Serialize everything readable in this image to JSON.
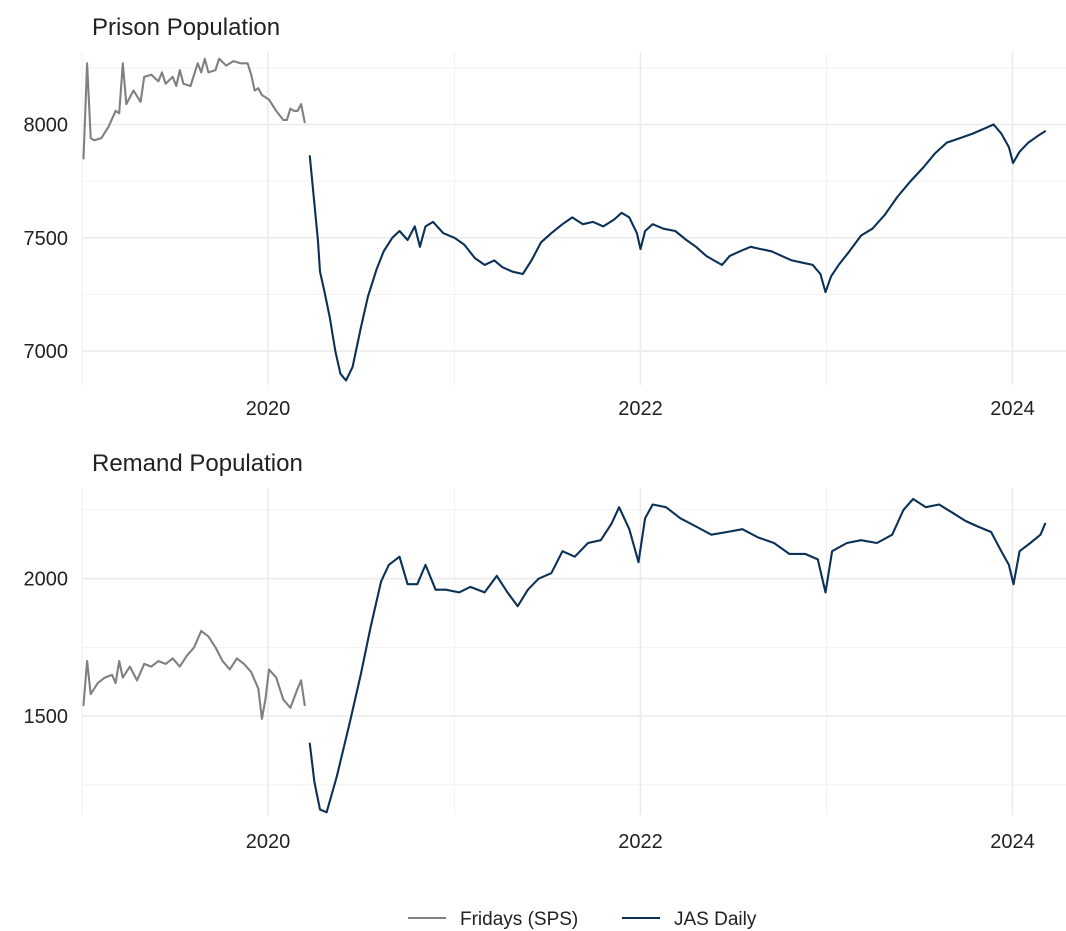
{
  "chart_data": [
    {
      "type": "line",
      "title": "Prison Population",
      "xlabel": "",
      "ylabel": "",
      "x_ticks": [
        "2020",
        "2022",
        "2024"
      ],
      "y_ticks": [
        "7000",
        "7500",
        "8000"
      ],
      "xlim": [
        "2019-01-01",
        "2024-04-15"
      ],
      "ylim": [
        6850,
        8320
      ],
      "grid": true,
      "series": [
        {
          "name": "Fridays (SPS)",
          "color": "#808080",
          "points": [
            [
              "2019-01-04",
              7850
            ],
            [
              "2019-01-11",
              8270
            ],
            [
              "2019-01-18",
              7940
            ],
            [
              "2019-01-25",
              7930
            ],
            [
              "2019-02-08",
              7940
            ],
            [
              "2019-02-22",
              7990
            ],
            [
              "2019-03-08",
              8060
            ],
            [
              "2019-03-15",
              8050
            ],
            [
              "2019-03-22",
              8270
            ],
            [
              "2019-03-29",
              8090
            ],
            [
              "2019-04-12",
              8150
            ],
            [
              "2019-04-26",
              8100
            ],
            [
              "2019-05-03",
              8210
            ],
            [
              "2019-05-17",
              8220
            ],
            [
              "2019-05-31",
              8190
            ],
            [
              "2019-06-07",
              8230
            ],
            [
              "2019-06-14",
              8180
            ],
            [
              "2019-06-28",
              8210
            ],
            [
              "2019-07-05",
              8170
            ],
            [
              "2019-07-12",
              8240
            ],
            [
              "2019-07-19",
              8180
            ],
            [
              "2019-08-02",
              8170
            ],
            [
              "2019-08-16",
              8270
            ],
            [
              "2019-08-23",
              8230
            ],
            [
              "2019-08-30",
              8290
            ],
            [
              "2019-09-06",
              8230
            ],
            [
              "2019-09-20",
              8240
            ],
            [
              "2019-09-27",
              8290
            ],
            [
              "2019-10-11",
              8260
            ],
            [
              "2019-10-25",
              8280
            ],
            [
              "2019-11-08",
              8270
            ],
            [
              "2019-11-22",
              8270
            ],
            [
              "2019-11-29",
              8220
            ],
            [
              "2019-12-06",
              8150
            ],
            [
              "2019-12-13",
              8160
            ],
            [
              "2019-12-20",
              8130
            ],
            [
              "2020-01-03",
              8110
            ],
            [
              "2020-01-17",
              8060
            ],
            [
              "2020-01-31",
              8020
            ],
            [
              "2020-02-07",
              8020
            ],
            [
              "2020-02-14",
              8070
            ],
            [
              "2020-02-21",
              8060
            ],
            [
              "2020-02-28",
              8060
            ],
            [
              "2020-03-06",
              8090
            ],
            [
              "2020-03-13",
              8010
            ]
          ]
        },
        {
          "name": "JAS Daily",
          "color": "#0b3157",
          "points": [
            [
              "2020-03-23",
              7860
            ],
            [
              "2020-03-30",
              7700
            ],
            [
              "2020-04-08",
              7490
            ],
            [
              "2020-04-12",
              7350
            ],
            [
              "2020-04-20",
              7270
            ],
            [
              "2020-05-01",
              7150
            ],
            [
              "2020-05-12",
              7000
            ],
            [
              "2020-05-22",
              6900
            ],
            [
              "2020-06-02",
              6870
            ],
            [
              "2020-06-15",
              6930
            ],
            [
              "2020-07-01",
              7100
            ],
            [
              "2020-07-15",
              7240
            ],
            [
              "2020-08-01",
              7360
            ],
            [
              "2020-08-15",
              7440
            ],
            [
              "2020-09-01",
              7500
            ],
            [
              "2020-09-15",
              7530
            ],
            [
              "2020-10-01",
              7490
            ],
            [
              "2020-10-15",
              7550
            ],
            [
              "2020-10-25",
              7460
            ],
            [
              "2020-11-05",
              7550
            ],
            [
              "2020-11-20",
              7570
            ],
            [
              "2020-12-10",
              7520
            ],
            [
              "2021-01-01",
              7500
            ],
            [
              "2021-01-20",
              7470
            ],
            [
              "2021-02-10",
              7410
            ],
            [
              "2021-03-01",
              7380
            ],
            [
              "2021-03-20",
              7400
            ],
            [
              "2021-04-05",
              7370
            ],
            [
              "2021-04-25",
              7350
            ],
            [
              "2021-05-15",
              7340
            ],
            [
              "2021-06-01",
              7400
            ],
            [
              "2021-06-20",
              7480
            ],
            [
              "2021-07-10",
              7520
            ],
            [
              "2021-08-01",
              7560
            ],
            [
              "2021-08-20",
              7590
            ],
            [
              "2021-09-10",
              7560
            ],
            [
              "2021-09-30",
              7570
            ],
            [
              "2021-10-20",
              7550
            ],
            [
              "2021-11-10",
              7580
            ],
            [
              "2021-11-25",
              7610
            ],
            [
              "2021-12-10",
              7590
            ],
            [
              "2021-12-25",
              7520
            ],
            [
              "2022-01-01",
              7450
            ],
            [
              "2022-01-10",
              7530
            ],
            [
              "2022-01-25",
              7560
            ],
            [
              "2022-02-15",
              7540
            ],
            [
              "2022-03-10",
              7530
            ],
            [
              "2022-04-01",
              7490
            ],
            [
              "2022-04-20",
              7460
            ],
            [
              "2022-05-10",
              7420
            ],
            [
              "2022-05-25",
              7400
            ],
            [
              "2022-06-10",
              7380
            ],
            [
              "2022-06-25",
              7420
            ],
            [
              "2022-07-15",
              7440
            ],
            [
              "2022-08-05",
              7460
            ],
            [
              "2022-08-25",
              7450
            ],
            [
              "2022-09-15",
              7440
            ],
            [
              "2022-10-05",
              7420
            ],
            [
              "2022-10-25",
              7400
            ],
            [
              "2022-11-15",
              7390
            ],
            [
              "2022-12-05",
              7380
            ],
            [
              "2022-12-20",
              7340
            ],
            [
              "2022-12-30",
              7260
            ],
            [
              "2023-01-10",
              7330
            ],
            [
              "2023-01-25",
              7380
            ],
            [
              "2023-02-15",
              7440
            ],
            [
              "2023-03-10",
              7510
            ],
            [
              "2023-04-01",
              7540
            ],
            [
              "2023-04-25",
              7600
            ],
            [
              "2023-05-20",
              7680
            ],
            [
              "2023-06-15",
              7750
            ],
            [
              "2023-07-10",
              7810
            ],
            [
              "2023-08-01",
              7870
            ],
            [
              "2023-08-25",
              7920
            ],
            [
              "2023-09-20",
              7940
            ],
            [
              "2023-10-15",
              7960
            ],
            [
              "2023-11-05",
              7980
            ],
            [
              "2023-11-25",
              8000
            ],
            [
              "2023-12-10",
              7960
            ],
            [
              "2023-12-25",
              7900
            ],
            [
              "2024-01-02",
              7830
            ],
            [
              "2024-01-15",
              7880
            ],
            [
              "2024-02-01",
              7920
            ],
            [
              "2024-02-20",
              7950
            ],
            [
              "2024-03-05",
              7970
            ]
          ]
        }
      ]
    },
    {
      "type": "line",
      "title": "Remand Population",
      "xlabel": "",
      "ylabel": "",
      "x_ticks": [
        "2020",
        "2022",
        "2024"
      ],
      "y_ticks": [
        "1500",
        "2000"
      ],
      "xlim": [
        "2019-01-01",
        "2024-04-15"
      ],
      "ylim": [
        1140,
        2330
      ],
      "grid": true,
      "series": [
        {
          "name": "Fridays (SPS)",
          "color": "#808080",
          "points": [
            [
              "2019-01-04",
              1540
            ],
            [
              "2019-01-11",
              1700
            ],
            [
              "2019-01-18",
              1580
            ],
            [
              "2019-02-01",
              1620
            ],
            [
              "2019-02-15",
              1640
            ],
            [
              "2019-03-01",
              1650
            ],
            [
              "2019-03-08",
              1620
            ],
            [
              "2019-03-15",
              1700
            ],
            [
              "2019-03-22",
              1640
            ],
            [
              "2019-04-05",
              1680
            ],
            [
              "2019-04-19",
              1630
            ],
            [
              "2019-05-03",
              1690
            ],
            [
              "2019-05-17",
              1680
            ],
            [
              "2019-05-31",
              1700
            ],
            [
              "2019-06-14",
              1690
            ],
            [
              "2019-06-28",
              1710
            ],
            [
              "2019-07-12",
              1680
            ],
            [
              "2019-07-26",
              1720
            ],
            [
              "2019-08-09",
              1750
            ],
            [
              "2019-08-23",
              1810
            ],
            [
              "2019-09-06",
              1790
            ],
            [
              "2019-09-20",
              1750
            ],
            [
              "2019-10-04",
              1700
            ],
            [
              "2019-10-18",
              1670
            ],
            [
              "2019-11-01",
              1710
            ],
            [
              "2019-11-15",
              1690
            ],
            [
              "2019-11-29",
              1660
            ],
            [
              "2019-12-13",
              1600
            ],
            [
              "2019-12-20",
              1490
            ],
            [
              "2019-12-27",
              1560
            ],
            [
              "2020-01-03",
              1670
            ],
            [
              "2020-01-17",
              1640
            ],
            [
              "2020-01-31",
              1560
            ],
            [
              "2020-02-14",
              1530
            ],
            [
              "2020-02-28",
              1600
            ],
            [
              "2020-03-06",
              1630
            ],
            [
              "2020-03-13",
              1540
            ]
          ]
        },
        {
          "name": "JAS Daily",
          "color": "#0b3157",
          "points": [
            [
              "2020-03-23",
              1400
            ],
            [
              "2020-04-01",
              1260
            ],
            [
              "2020-04-12",
              1160
            ],
            [
              "2020-04-25",
              1150
            ],
            [
              "2020-05-15",
              1280
            ],
            [
              "2020-06-10",
              1480
            ],
            [
              "2020-07-01",
              1650
            ],
            [
              "2020-07-20",
              1820
            ],
            [
              "2020-08-10",
              1990
            ],
            [
              "2020-08-25",
              2050
            ],
            [
              "2020-09-15",
              2080
            ],
            [
              "2020-10-01",
              1980
            ],
            [
              "2020-10-20",
              1980
            ],
            [
              "2020-11-05",
              2050
            ],
            [
              "2020-11-25",
              1960
            ],
            [
              "2020-12-15",
              1960
            ],
            [
              "2021-01-10",
              1950
            ],
            [
              "2021-02-01",
              1970
            ],
            [
              "2021-03-01",
              1950
            ],
            [
              "2021-03-25",
              2010
            ],
            [
              "2021-04-15",
              1950
            ],
            [
              "2021-05-05",
              1900
            ],
            [
              "2021-05-25",
              1960
            ],
            [
              "2021-06-15",
              2000
            ],
            [
              "2021-07-10",
              2020
            ],
            [
              "2021-08-01",
              2100
            ],
            [
              "2021-08-25",
              2080
            ],
            [
              "2021-09-20",
              2130
            ],
            [
              "2021-10-15",
              2140
            ],
            [
              "2021-11-05",
              2200
            ],
            [
              "2021-11-20",
              2260
            ],
            [
              "2021-12-10",
              2180
            ],
            [
              "2021-12-28",
              2060
            ],
            [
              "2022-01-10",
              2220
            ],
            [
              "2022-01-25",
              2270
            ],
            [
              "2022-02-20",
              2260
            ],
            [
              "2022-03-20",
              2220
            ],
            [
              "2022-04-20",
              2190
            ],
            [
              "2022-05-20",
              2160
            ],
            [
              "2022-06-20",
              2170
            ],
            [
              "2022-07-20",
              2180
            ],
            [
              "2022-08-20",
              2150
            ],
            [
              "2022-09-20",
              2130
            ],
            [
              "2022-10-20",
              2090
            ],
            [
              "2022-11-20",
              2090
            ],
            [
              "2022-12-15",
              2070
            ],
            [
              "2022-12-30",
              1950
            ],
            [
              "2023-01-12",
              2100
            ],
            [
              "2023-02-10",
              2130
            ],
            [
              "2023-03-10",
              2140
            ],
            [
              "2023-04-10",
              2130
            ],
            [
              "2023-05-10",
              2160
            ],
            [
              "2023-06-01",
              2250
            ],
            [
              "2023-06-20",
              2290
            ],
            [
              "2023-07-15",
              2260
            ],
            [
              "2023-08-10",
              2270
            ],
            [
              "2023-09-05",
              2240
            ],
            [
              "2023-10-01",
              2210
            ],
            [
              "2023-10-25",
              2190
            ],
            [
              "2023-11-20",
              2170
            ],
            [
              "2023-12-10",
              2100
            ],
            [
              "2023-12-25",
              2050
            ],
            [
              "2024-01-03",
              1980
            ],
            [
              "2024-01-15",
              2100
            ],
            [
              "2024-02-05",
              2130
            ],
            [
              "2024-02-25",
              2160
            ],
            [
              "2024-03-05",
              2200
            ]
          ]
        }
      ]
    }
  ],
  "legend": {
    "placement": "bottom",
    "items": [
      {
        "label": "Fridays (SPS)",
        "color": "#808080"
      },
      {
        "label": "JAS Daily",
        "color": "#0b3157"
      }
    ]
  }
}
